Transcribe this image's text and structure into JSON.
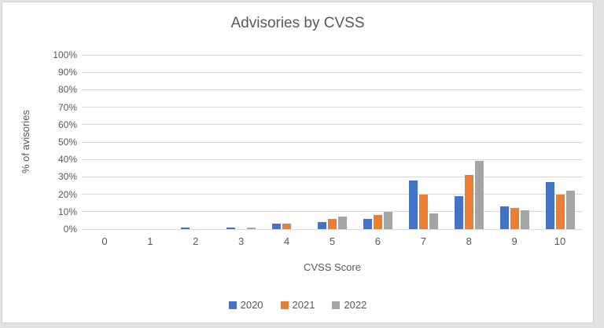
{
  "chart_data": {
    "type": "bar",
    "title": "Advisories by CVSS",
    "xlabel": "CVSS Score",
    "ylabel": "% of avisories",
    "categories": [
      "0",
      "1",
      "2",
      "3",
      "4",
      "5",
      "6",
      "7",
      "8",
      "9",
      "10"
    ],
    "series": [
      {
        "name": "2020",
        "color": "#4472C4",
        "values": [
          0,
          0,
          1,
          1,
          3,
          4,
          6,
          28,
          19,
          13,
          27
        ]
      },
      {
        "name": "2021",
        "color": "#ED7D31",
        "values": [
          0,
          0,
          0,
          0,
          3,
          6,
          8,
          20,
          31,
          12,
          20
        ]
      },
      {
        "name": "2022",
        "color": "#A5A5A5",
        "values": [
          0,
          0,
          0,
          1,
          0,
          7,
          10,
          9,
          39,
          11,
          22
        ]
      }
    ],
    "ylim": [
      0,
      100
    ],
    "ytick_step": 10,
    "ytick_suffix": "%",
    "grid": true,
    "legend_position": "bottom",
    "colors": {
      "text": "#595959",
      "gridline": "#D9D9D9"
    }
  }
}
